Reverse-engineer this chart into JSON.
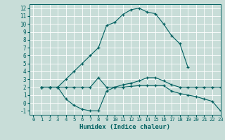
{
  "xlabel": "Humidex (Indice chaleur)",
  "background_color": "#c8ddd8",
  "grid_color": "#ffffff",
  "line_color": "#006060",
  "xlim": [
    -0.5,
    23
  ],
  "ylim": [
    -1.5,
    12.5
  ],
  "yticks": [
    -1,
    0,
    1,
    2,
    3,
    4,
    5,
    6,
    7,
    8,
    9,
    10,
    11,
    12
  ],
  "xticks": [
    0,
    1,
    2,
    3,
    4,
    5,
    6,
    7,
    8,
    9,
    10,
    11,
    12,
    13,
    14,
    15,
    16,
    17,
    18,
    19,
    20,
    21,
    22,
    23
  ],
  "curve1_x": [
    1,
    2,
    3,
    4,
    5,
    6,
    7,
    8,
    9,
    10,
    11,
    12,
    13,
    14,
    15,
    16,
    17,
    18,
    19
  ],
  "curve1_y": [
    2,
    2,
    2,
    3,
    4,
    5,
    6,
    7,
    9.8,
    10.2,
    11.2,
    11.8,
    12,
    11.5,
    11.3,
    10,
    8.5,
    7.5,
    4.5
  ],
  "curve2_x": [
    1,
    2,
    3,
    4,
    5,
    6,
    7,
    8,
    9,
    10,
    11,
    12,
    13,
    14,
    15,
    16,
    17,
    18,
    19,
    20,
    21,
    22,
    23
  ],
  "curve2_y": [
    2,
    2,
    2,
    0.5,
    -0.3,
    -0.8,
    -1.0,
    -1.0,
    1.5,
    2,
    2,
    2.1,
    2.2,
    2.2,
    2.2,
    2.2,
    1.5,
    1.2,
    1.0,
    0.8,
    0.5,
    0.2,
    -1.0
  ],
  "curve3_x": [
    1,
    2,
    3,
    4,
    5,
    6,
    7,
    8,
    9,
    10,
    11,
    12,
    13,
    14,
    15,
    16,
    17,
    18,
    19,
    20,
    21,
    22,
    23
  ],
  "curve3_y": [
    2,
    2,
    2,
    2,
    2,
    2,
    2,
    3.2,
    2,
    2,
    2.3,
    2.5,
    2.8,
    3.2,
    3.2,
    2.8,
    2.3,
    2.0,
    2.0,
    2.0,
    2.0,
    2.0,
    2.0
  ]
}
